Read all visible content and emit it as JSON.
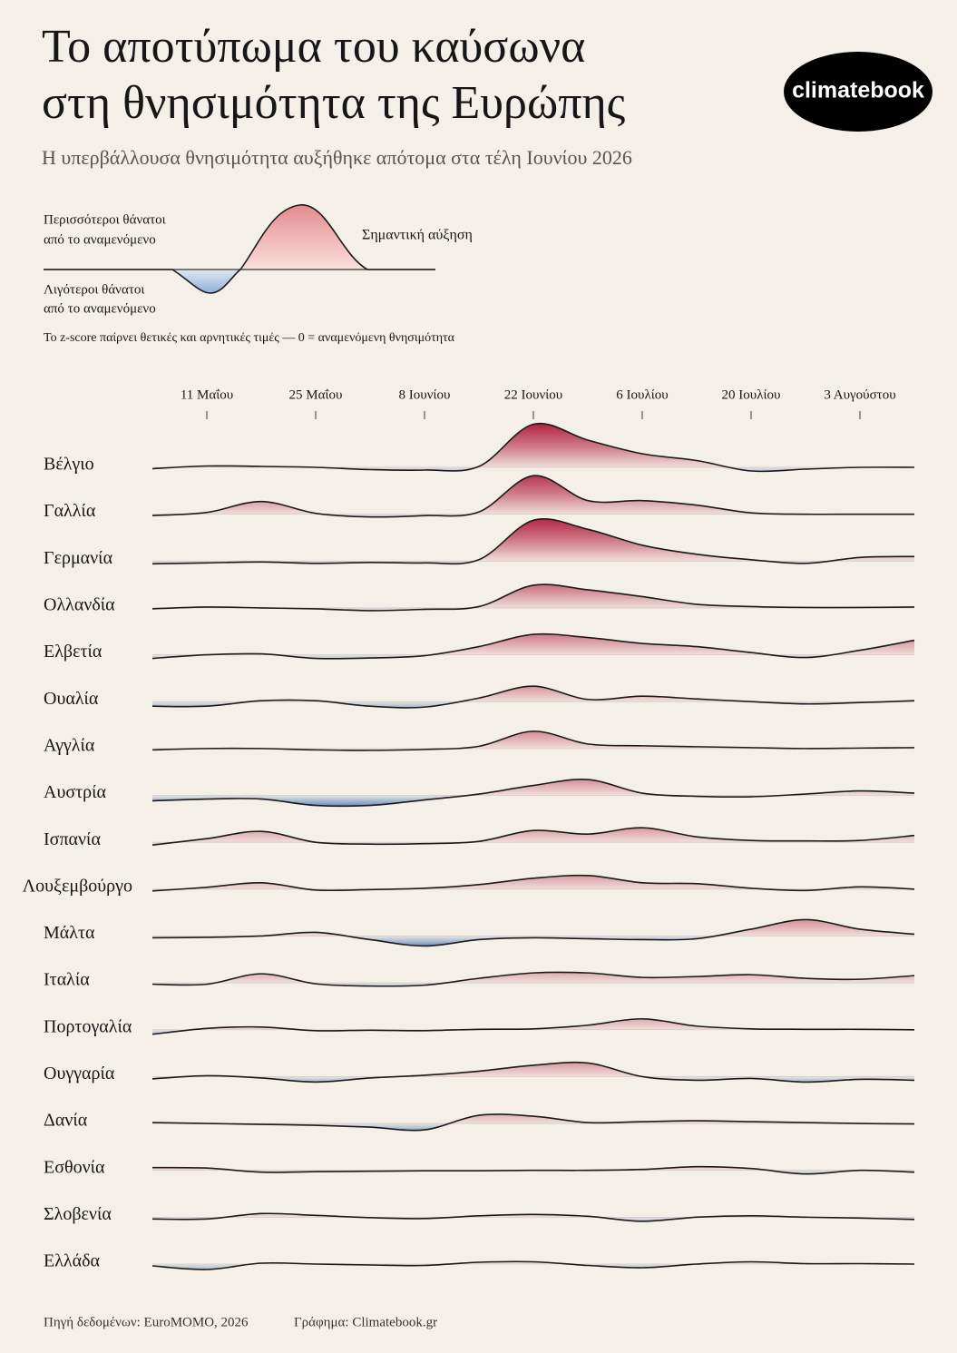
{
  "chart_data": {
    "type": "ridgeline",
    "title": [
      "Το αποτύπωμα του καύσωνα",
      "στη θνησιμότητα της Ευρώπης"
    ],
    "subtitle": "Η υπερβάλλουσα θνησιμότητα αυξήθηκε απότομα στα τέλη Ιουνίου 2026",
    "logo": "climatebook",
    "legend": {
      "positive": [
        "Περισσότεροι θάνατοι",
        "από το αναμενόμενο"
      ],
      "peak": "Σημαντική αύξηση",
      "negative": [
        "Λιγότεροι θάνατοι",
        "από το αναμενόμενο"
      ],
      "note": "Το z-score παίρνει θετικές και αρνητικές τιμές — 0 = αναμενόμενη θνησιμότητα"
    },
    "positive_color": "#b01c3c",
    "negative_color": "#3d6fb0",
    "categories": [
      null,
      "11 Μαΐου",
      null,
      "25 Μαΐου",
      null,
      "8 Ιουνίου",
      null,
      "22 Ιουνίου",
      null,
      "6 Ιουλίου",
      null,
      "20 Ιουλίου",
      null,
      "3 Αυγούστου",
      null
    ],
    "series": [
      {
        "name": "Βέλγιο",
        "values": [
          -0.3,
          0.3,
          0.2,
          0,
          -0.5,
          -0.6,
          0.2,
          9.5,
          6,
          3,
          1.5,
          -0.8,
          -0.4,
          0,
          0
        ]
      },
      {
        "name": "Γαλλία",
        "values": [
          -0.3,
          0.4,
          2.8,
          0.2,
          -0.6,
          -0.3,
          0.5,
          8.5,
          3,
          3,
          2,
          0.3,
          0,
          0,
          0
        ]
      },
      {
        "name": "Γερμανία",
        "values": [
          -0.6,
          -0.4,
          -0.2,
          -0.5,
          -0.3,
          -0.4,
          0.3,
          9,
          7,
          3.5,
          1.5,
          0.3,
          -0.5,
          0.8,
          1
        ]
      },
      {
        "name": "Ολλανδία",
        "values": [
          -0.2,
          0.2,
          0,
          -0.2,
          -0.6,
          -0.3,
          0.3,
          5,
          4,
          2.5,
          0.8,
          0.3,
          0.1,
          0.1,
          0.2
        ]
      },
      {
        "name": "Ελβετία",
        "values": [
          -0.8,
          0,
          0.2,
          -0.8,
          -0.7,
          -0.2,
          1.8,
          4.5,
          3.8,
          2.5,
          1.8,
          0.5,
          -0.6,
          1,
          3.2
        ]
      },
      {
        "name": "Ουαλία",
        "values": [
          -1,
          -1,
          0.2,
          0.2,
          -1,
          -1.2,
          0.8,
          3.4,
          0.5,
          1.2,
          0.6,
          0,
          -0.5,
          -0.2,
          0.2
        ]
      },
      {
        "name": "Αγγλία",
        "values": [
          -0.3,
          0,
          0,
          -0.3,
          -0.4,
          -0.2,
          0.5,
          3.8,
          1,
          0.6,
          0.4,
          0.2,
          0,
          0.1,
          0.2
        ]
      },
      {
        "name": "Αυστρία",
        "values": [
          -1.2,
          -0.8,
          -0.8,
          -2.2,
          -2.2,
          -1,
          0.3,
          2.2,
          3.5,
          0.5,
          -0.2,
          -0.3,
          0.3,
          1,
          0.5
        ]
      },
      {
        "name": "Ισπανία",
        "values": [
          -0.6,
          0.8,
          2.4,
          0,
          -0.4,
          -0.3,
          0.2,
          2.6,
          1.8,
          3.2,
          1.2,
          0.4,
          0.3,
          0.4,
          1.5
        ]
      },
      {
        "name": "Λουξεμβούργο",
        "values": [
          -0.4,
          0.4,
          1.4,
          -0.2,
          -0.1,
          0.2,
          1,
          2.4,
          3,
          1.4,
          1.2,
          0.2,
          -0.3,
          0.5,
          0
        ]
      },
      {
        "name": "Μάλτα",
        "values": [
          -0.4,
          -0.3,
          0,
          0.8,
          -0.8,
          -2.2,
          -0.8,
          -0.4,
          -0.6,
          -0.8,
          -0.6,
          1.5,
          3.6,
          1.5,
          0.4
        ]
      },
      {
        "name": "Ιταλία",
        "values": [
          -0.3,
          -0.3,
          2,
          -0.2,
          -0.7,
          -0.5,
          1,
          2.2,
          2.2,
          1.2,
          1.4,
          1.8,
          1,
          0.8,
          1.6
        ]
      },
      {
        "name": "Πορτογαλία",
        "values": [
          -1,
          0.3,
          0.6,
          -0.2,
          -0.1,
          -0.2,
          0.1,
          0.2,
          1,
          2.4,
          0.8,
          0.2,
          0.1,
          0.1,
          0
        ]
      },
      {
        "name": "Ουγγαρία",
        "values": [
          -0.5,
          0.2,
          -0.3,
          -1.2,
          -0.3,
          0.3,
          1.2,
          2.5,
          3,
          0,
          -0.8,
          -0.4,
          -1.2,
          -0.6,
          -0.8
        ]
      },
      {
        "name": "Δανία",
        "values": [
          0.2,
          0,
          -0.2,
          -0.4,
          -0.8,
          -1.4,
          1.8,
          1.6,
          0.2,
          0.4,
          0.6,
          0.4,
          0.2,
          0,
          -0.1
        ]
      },
      {
        "name": "Εσθονία",
        "values": [
          0.6,
          0.5,
          -0.4,
          -0.3,
          -0.2,
          -0.1,
          -0.1,
          0,
          0,
          0.2,
          0.8,
          0.4,
          -0.8,
          0,
          -0.4
        ]
      },
      {
        "name": "Σλοβενία",
        "values": [
          -0.4,
          -0.4,
          0.8,
          0.4,
          -0.1,
          -0.3,
          0.3,
          0.6,
          0.2,
          -0.9,
          0,
          0.3,
          0,
          -0.2,
          -0.5
        ]
      },
      {
        "name": "Ελλάδα",
        "values": [
          -0.4,
          -1.2,
          0.2,
          0,
          -0.2,
          -0.3,
          0.4,
          0.5,
          -0.3,
          -0.8,
          0,
          0.5,
          0.1,
          0.1,
          0
        ]
      }
    ],
    "footer": {
      "source": "Πηγή δεδομένων: EuroMOMO, 2026",
      "credit": "Γράφημα: Climatebook.gr"
    }
  }
}
